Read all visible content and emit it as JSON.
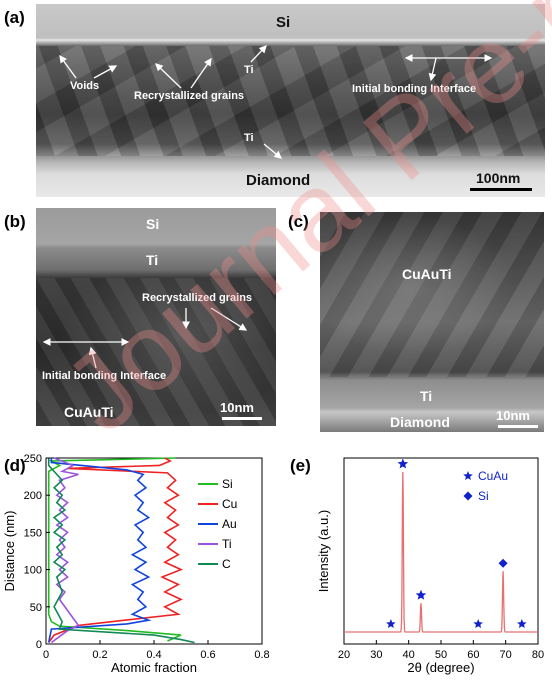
{
  "panels": {
    "a": {
      "label": "(a)",
      "si": "Si",
      "diamond": "Diamond",
      "voids": "Voids",
      "recrystallized": "Recrystallized grains",
      "ti_top": "Ti",
      "ti_bottom": "Ti",
      "interface": "Initial bonding Interface",
      "scale": "100nm"
    },
    "b": {
      "label": "(b)",
      "si": "Si",
      "ti": "Ti",
      "recrystallized": "Recrystallized grains",
      "interface": "Initial bonding Interface",
      "cuauti": "CuAuTi",
      "scale": "10nm"
    },
    "c": {
      "label": "(c)",
      "cuauti": "CuAuTi",
      "ti": "Ti",
      "diamond": "Diamond",
      "scale": "10nm"
    },
    "d": {
      "label": "(d)"
    },
    "e": {
      "label": "(e)"
    }
  },
  "watermark": "Journal Pre-proof",
  "chart_data": [
    {
      "type": "line",
      "panel": "d",
      "xlabel": "Atomic fraction",
      "ylabel": "Distance (nm)",
      "xlim": [
        0,
        0.8
      ],
      "ylim": [
        0,
        250
      ],
      "xticks": [
        "0",
        "0.2",
        "0.4",
        "0.6",
        "0.8"
      ],
      "yticks": [
        "0",
        "50",
        "100",
        "150",
        "200",
        "250"
      ],
      "legend_position": "right",
      "series": [
        {
          "name": "Si",
          "color": "#22bb22",
          "x": [
            0.48,
            0.02,
            0.05,
            0.03,
            0.01,
            0.01,
            0.01,
            0.01,
            0.01,
            0.01,
            0.01,
            0.01,
            0.01,
            0.01,
            0.01,
            0.01,
            0.01,
            0.01,
            0.01,
            0.01,
            0.02,
            0.05,
            0.3,
            0.5,
            0.45
          ],
          "y": [
            250,
            246,
            240,
            236,
            232,
            220,
            210,
            200,
            190,
            180,
            170,
            160,
            150,
            140,
            130,
            120,
            100,
            80,
            60,
            40,
            30,
            24,
            18,
            12,
            4
          ]
        },
        {
          "name": "Cu",
          "color": "#ee2222",
          "x": [
            0.44,
            0.46,
            0.42,
            0.08,
            0.45,
            0.48,
            0.45,
            0.49,
            0.44,
            0.48,
            0.45,
            0.49,
            0.44,
            0.48,
            0.45,
            0.49,
            0.44,
            0.5,
            0.43,
            0.49,
            0.44,
            0.5,
            0.44,
            0.49,
            0.12,
            0.03,
            0.01
          ],
          "y": [
            250,
            246,
            240,
            236,
            230,
            220,
            210,
            200,
            190,
            180,
            170,
            160,
            150,
            140,
            130,
            120,
            110,
            100,
            90,
            80,
            70,
            60,
            50,
            40,
            25,
            12,
            2
          ]
        },
        {
          "name": "Au",
          "color": "#1144dd",
          "x": [
            0.02,
            0.02,
            0.3,
            0.36,
            0.34,
            0.37,
            0.33,
            0.36,
            0.34,
            0.38,
            0.33,
            0.36,
            0.34,
            0.37,
            0.32,
            0.37,
            0.33,
            0.38,
            0.32,
            0.36,
            0.34,
            0.37,
            0.32,
            0.38,
            0.3,
            0.02,
            0.01
          ],
          "y": [
            250,
            244,
            234,
            228,
            220,
            210,
            200,
            190,
            180,
            170,
            160,
            150,
            140,
            130,
            120,
            110,
            100,
            90,
            80,
            70,
            60,
            50,
            40,
            32,
            27,
            20,
            2
          ]
        },
        {
          "name": "Ti",
          "color": "#9955dd",
          "x": [
            0.03,
            0.1,
            0.06,
            0.12,
            0.05,
            0.07,
            0.04,
            0.08,
            0.05,
            0.08,
            0.04,
            0.08,
            0.05,
            0.07,
            0.04,
            0.08,
            0.05,
            0.08,
            0.04,
            0.07,
            0.05,
            0.09,
            0.12,
            0.08,
            0.05,
            0.02
          ],
          "y": [
            250,
            240,
            232,
            228,
            220,
            210,
            200,
            190,
            180,
            170,
            160,
            150,
            140,
            130,
            120,
            110,
            100,
            90,
            80,
            70,
            60,
            40,
            25,
            18,
            10,
            2
          ]
        },
        {
          "name": "C",
          "color": "#118855",
          "x": [
            0.01,
            0.01,
            0.03,
            0.06,
            0.03,
            0.06,
            0.04,
            0.07,
            0.03,
            0.06,
            0.03,
            0.07,
            0.04,
            0.06,
            0.03,
            0.07,
            0.04,
            0.06,
            0.03,
            0.06,
            0.05,
            0.4,
            0.5,
            0.55
          ],
          "y": [
            250,
            240,
            232,
            220,
            210,
            200,
            190,
            180,
            170,
            160,
            150,
            140,
            130,
            120,
            110,
            100,
            90,
            70,
            50,
            30,
            20,
            12,
            6,
            2
          ]
        }
      ]
    },
    {
      "type": "line",
      "panel": "e",
      "xlabel": "2θ (degree)",
      "ylabel": "Intensity (a.u.)",
      "xlim": [
        20,
        80
      ],
      "xticks": [
        "20",
        "30",
        "40",
        "50",
        "60",
        "70",
        "80"
      ],
      "legend": [
        {
          "name": "CuAu",
          "marker": "star",
          "color": "#1122cc"
        },
        {
          "name": "Si",
          "marker": "diamond",
          "color": "#1122cc"
        }
      ],
      "line_color": "#e87070",
      "peaks": [
        {
          "x": 38.2,
          "intensity": 1.0,
          "phase": "CuAu"
        },
        {
          "x": 43.8,
          "intensity": 0.18,
          "phase": "CuAu"
        },
        {
          "x": 69.2,
          "intensity": 0.38,
          "phase": "Si"
        }
      ],
      "minor_markers": [
        {
          "x": 34.5,
          "phase": "CuAu"
        },
        {
          "x": 61.5,
          "phase": "CuAu"
        },
        {
          "x": 75.0,
          "phase": "CuAu"
        }
      ]
    }
  ]
}
